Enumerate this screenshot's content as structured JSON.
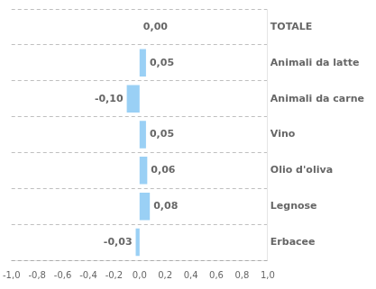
{
  "chart_data": {
    "type": "bar",
    "orientation": "horizontal",
    "categories": [
      "TOTALE",
      "Animali da latte",
      "Animali da carne",
      "Vino",
      "Olio d'oliva",
      "Legnose",
      "Erbacee"
    ],
    "values": [
      0.0,
      0.05,
      -0.1,
      0.05,
      0.06,
      0.08,
      -0.03
    ],
    "value_labels": [
      "0,00",
      "0,05",
      "-0,10",
      "0,05",
      "0,06",
      "0,08",
      "-0,03"
    ],
    "data_labels": true,
    "xlim": [
      -1.0,
      1.0
    ],
    "xticks": [
      {
        "value": -1.0,
        "label": "-1,0"
      },
      {
        "value": -0.8,
        "label": "-0,8"
      },
      {
        "value": -0.6,
        "label": "-0,6"
      },
      {
        "value": -0.4,
        "label": "-0,4"
      },
      {
        "value": -0.2,
        "label": "-0,2"
      },
      {
        "value": 0.0,
        "label": "0,0"
      },
      {
        "value": 0.2,
        "label": "0,2"
      },
      {
        "value": 0.4,
        "label": "0,4"
      },
      {
        "value": 0.6,
        "label": "0,6"
      },
      {
        "value": 0.8,
        "label": "0,8"
      },
      {
        "value": 1.0,
        "label": "1,0"
      }
    ],
    "grid": true
  }
}
